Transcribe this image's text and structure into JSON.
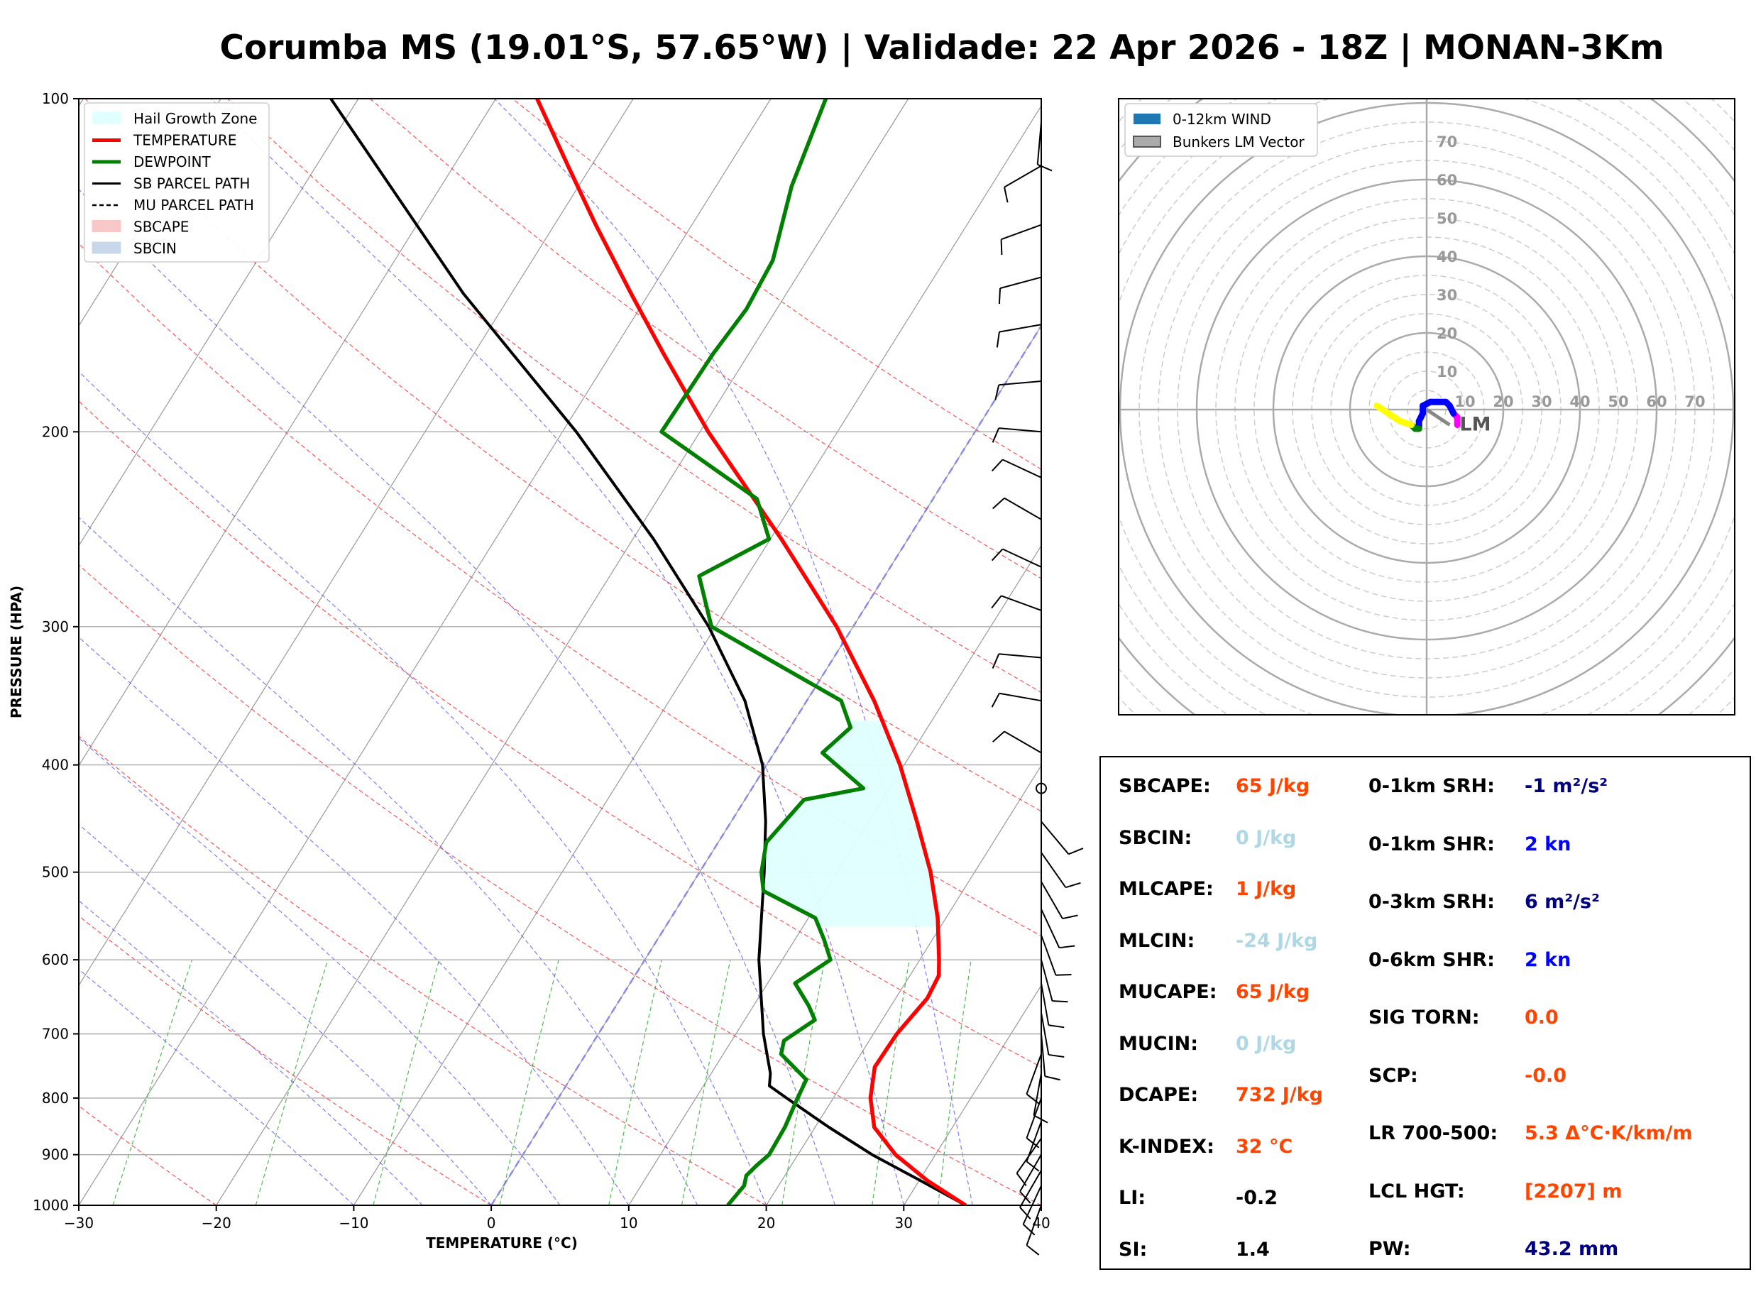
{
  "title": "Corumba MS (19.01°S, 57.65°W) | Validade: 22 Apr 2026 - 18Z | MONAN-3Km",
  "chart_data": [
    {
      "type": "line",
      "subtype": "skew-t log-p",
      "xlabel": "TEMPERATURE (°C)",
      "ylabel": "PRESSURE (HPA)",
      "xlim": [
        -30,
        40
      ],
      "ylim": [
        1000,
        100
      ],
      "y_scale": "log",
      "x_ticks": [
        -30,
        -20,
        -10,
        0,
        10,
        20,
        30,
        40
      ],
      "x_tick_labels": [
        "−30",
        "−20",
        "−10",
        "0",
        "10",
        "20",
        "30",
        "40"
      ],
      "y_ticks": [
        1000,
        900,
        800,
        700,
        600,
        500,
        400,
        300,
        200,
        100
      ],
      "grid": true,
      "legend_position": "top-left",
      "legend": [
        "Hail Growth Zone",
        "TEMPERATURE",
        "DEWPOINT",
        "SB PARCEL PATH",
        "MU PARCEL PATH",
        "SBCAPE",
        "SBCIN"
      ],
      "colors": {
        "temperature": "#ff0000",
        "dewpoint": "#008000",
        "parcel": "#000000",
        "hail": "#e0ffff",
        "dry_adiabat": "#ff3333",
        "moist_adiabat": "#4444ff",
        "mixing_ratio": "#22aa22",
        "isotherm_0": "#8888ee"
      },
      "series": [
        {
          "name": "TEMPERATURE",
          "points": [
            [
              1000,
              34.5
            ],
            [
              950,
              30.6
            ],
            [
              900,
              27.1
            ],
            [
              850,
              24.3
            ],
            [
              800,
              22.7
            ],
            [
              750,
              21.6
            ],
            [
              700,
              21.7
            ],
            [
              650,
              22.3
            ],
            [
              620,
              22.1
            ],
            [
              600,
              21.4
            ],
            [
              550,
              19.4
            ],
            [
              500,
              16.8
            ],
            [
              450,
              13.5
            ],
            [
              400,
              9.7
            ],
            [
              350,
              4.9
            ],
            [
              300,
              -1.2
            ],
            [
              250,
              -9.2
            ],
            [
              200,
              -19.4
            ],
            [
              170,
              -26.2
            ],
            [
              150,
              -31.3
            ],
            [
              130,
              -37.0
            ],
            [
              115,
              -41.7
            ],
            [
              100,
              -47.0
            ]
          ]
        },
        {
          "name": "DEWPOINT",
          "points": [
            [
              1000,
              17.2
            ],
            [
              960,
              17.5
            ],
            [
              940,
              17.2
            ],
            [
              920,
              17.5
            ],
            [
              900,
              17.9
            ],
            [
              850,
              17.8
            ],
            [
              800,
              17.4
            ],
            [
              770,
              17.2
            ],
            [
              730,
              14.2
            ],
            [
              710,
              13.8
            ],
            [
              680,
              15.1
            ],
            [
              660,
              14.0
            ],
            [
              630,
              12.0
            ],
            [
              600,
              13.5
            ],
            [
              575,
              12.1
            ],
            [
              550,
              10.5
            ],
            [
              520,
              5.5
            ],
            [
              500,
              4.5
            ],
            [
              470,
              3.5
            ],
            [
              430,
              4.3
            ],
            [
              420,
              8.1
            ],
            [
              390,
              3.5
            ],
            [
              370,
              4.4
            ],
            [
              350,
              2.5
            ],
            [
              300,
              -10.3
            ],
            [
              270,
              -13.5
            ],
            [
              250,
              -10.1
            ],
            [
              230,
              -12.8
            ],
            [
              200,
              -22.8
            ],
            [
              170,
              -22.6
            ],
            [
              155,
              -22.2
            ],
            [
              140,
              -22.5
            ],
            [
              120,
              -24.5
            ],
            [
              100,
              -26.0
            ]
          ]
        },
        {
          "name": "SB PARCEL PATH",
          "points": [
            [
              1000,
              34.5
            ],
            [
              950,
              30.1
            ],
            [
              900,
              25.4
            ],
            [
              850,
              21.0
            ],
            [
              800,
              16.6
            ],
            [
              780,
              14.8
            ],
            [
              760,
              14.3
            ],
            [
              700,
              12.0
            ],
            [
              600,
              8.3
            ],
            [
              500,
              4.7
            ],
            [
              450,
              2.5
            ],
            [
              400,
              -0.3
            ],
            [
              350,
              -4.5
            ],
            [
              300,
              -10.5
            ],
            [
              250,
              -18.5
            ],
            [
              200,
              -29.0
            ],
            [
              150,
              -43.5
            ],
            [
              100,
              -62.0
            ]
          ]
        }
      ],
      "hail_growth_zone": {
        "pressure_range": [
          560,
          365
        ]
      }
    },
    {
      "type": "hodograph",
      "legend": [
        "0-12km WIND",
        "Bunkers LM Vector"
      ],
      "legend_position": "top-left",
      "rings": [
        10,
        20,
        30,
        40,
        50,
        60,
        70
      ],
      "ring_labels": [
        "10",
        "20",
        "30",
        "40",
        "50",
        "60",
        "70"
      ],
      "storm_motion_label": "LM",
      "colors": {
        "wind": "#1f77b4",
        "low": "#ff00ff",
        "mid": "#0000ff",
        "upper": "#008000",
        "top": "#ffff00",
        "bunkers": "#888888"
      },
      "trace": [
        [
          8,
          -4
        ],
        [
          8,
          -2
        ],
        [
          7,
          -1
        ],
        [
          6,
          1
        ],
        [
          5,
          2
        ],
        [
          3,
          2
        ],
        [
          1,
          2
        ],
        [
          -1,
          1
        ],
        [
          -1,
          -1
        ],
        [
          -2,
          -3
        ],
        [
          -2,
          -5
        ],
        [
          -3,
          -5
        ],
        [
          -4,
          -4
        ],
        [
          -7,
          -3
        ],
        [
          -10,
          -1
        ],
        [
          -13,
          1
        ]
      ],
      "bunkers_lm": [
        6,
        -4
      ]
    }
  ],
  "params": {
    "left": [
      {
        "label": "SBCAPE:",
        "value": "65 J/kg",
        "color": "#ff4500"
      },
      {
        "label": "SBCIN:",
        "value": "0 J/kg",
        "color": "#add8e6"
      },
      {
        "label": "MLCAPE:",
        "value": "1 J/kg",
        "color": "#ff4500"
      },
      {
        "label": "MLCIN:",
        "value": "-24 J/kg",
        "color": "#add8e6"
      },
      {
        "label": "MUCAPE:",
        "value": "65 J/kg",
        "color": "#ff4500"
      },
      {
        "label": "MUCIN:",
        "value": "0 J/kg",
        "color": "#add8e6"
      },
      {
        "label": "DCAPE:",
        "value": "732 J/kg",
        "color": "#ff4500"
      },
      {
        "label": "K-INDEX:",
        "value": "32 °C",
        "color": "#ff4500"
      },
      {
        "label": "LI:",
        "value": "-0.2",
        "color": "#000000"
      },
      {
        "label": "SI:",
        "value": "1.4",
        "color": "#000000"
      }
    ],
    "right": [
      {
        "label": "0-1km SRH:",
        "value": "-1 m²/s²",
        "color": "#000080"
      },
      {
        "label": "0-1km SHR:",
        "value": "2 kn",
        "color": "#0000ff"
      },
      {
        "label": "0-3km SRH:",
        "value": "6 m²/s²",
        "color": "#000080"
      },
      {
        "label": "0-6km SHR:",
        "value": "2 kn",
        "color": "#0000ff"
      },
      {
        "label": "SIG TORN:",
        "value": "0.0",
        "color": "#ff4500"
      },
      {
        "label": "SCP:",
        "value": "-0.0",
        "color": "#ff4500"
      },
      {
        "label": "LR 700-500:",
        "value": "5.3 Δ°C·K/km/m",
        "color": "#ff4500"
      },
      {
        "label": "LCL HGT:",
        "value": "[2207] m",
        "color": "#ff4500"
      },
      {
        "label": "PW:",
        "value": "43.2 mm",
        "color": "#000080"
      }
    ]
  }
}
